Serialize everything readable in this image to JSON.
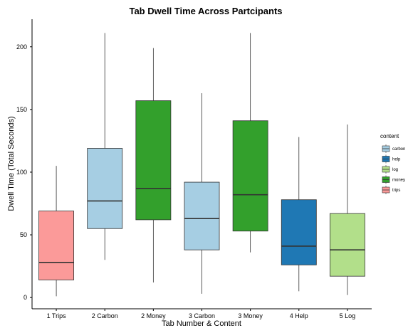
{
  "chart_data": {
    "type": "boxplot",
    "title": "Tab Dwell Time Across Partcipants",
    "xlabel": "Tab Number & Content",
    "ylabel": "Dwell Time (Total Seconds)",
    "ylim": [
      -9,
      222
    ],
    "y_ticks": [
      0,
      50,
      100,
      150,
      200
    ],
    "grid": false,
    "legend": {
      "title": "content",
      "placement": "right",
      "entries": [
        {
          "label": "carbon",
          "color": "#a6cee3"
        },
        {
          "label": "help",
          "color": "#1f78b4"
        },
        {
          "label": "log",
          "color": "#b2df8a"
        },
        {
          "label": "money",
          "color": "#33a02c"
        },
        {
          "label": "trips",
          "color": "#fb9a99"
        }
      ]
    },
    "categories": [
      "1 Trips",
      "2 Carbon",
      "2 Money",
      "3 Carbon",
      "3 Money",
      "4 Help",
      "5 Log"
    ],
    "boxes": [
      {
        "category": "1 Trips",
        "content": "trips",
        "min": 1,
        "q1": 14,
        "median": 28,
        "q3": 69,
        "max": 105
      },
      {
        "category": "2 Carbon",
        "content": "carbon",
        "min": 30,
        "q1": 55,
        "median": 77,
        "q3": 119,
        "max": 211
      },
      {
        "category": "2 Money",
        "content": "money",
        "min": 12,
        "q1": 62,
        "median": 87,
        "q3": 157,
        "max": 199
      },
      {
        "category": "3 Carbon",
        "content": "carbon",
        "min": 3,
        "q1": 38,
        "median": 63,
        "q3": 92,
        "max": 163
      },
      {
        "category": "3 Money",
        "content": "money",
        "min": 36,
        "q1": 53,
        "median": 82,
        "q3": 141,
        "max": 211
      },
      {
        "category": "4 Help",
        "content": "help",
        "min": 5,
        "q1": 26,
        "median": 41,
        "q3": 78,
        "max": 128
      },
      {
        "category": "5 Log",
        "content": "log",
        "min": 2,
        "q1": 17,
        "median": 38,
        "q3": 67,
        "max": 138
      }
    ]
  }
}
